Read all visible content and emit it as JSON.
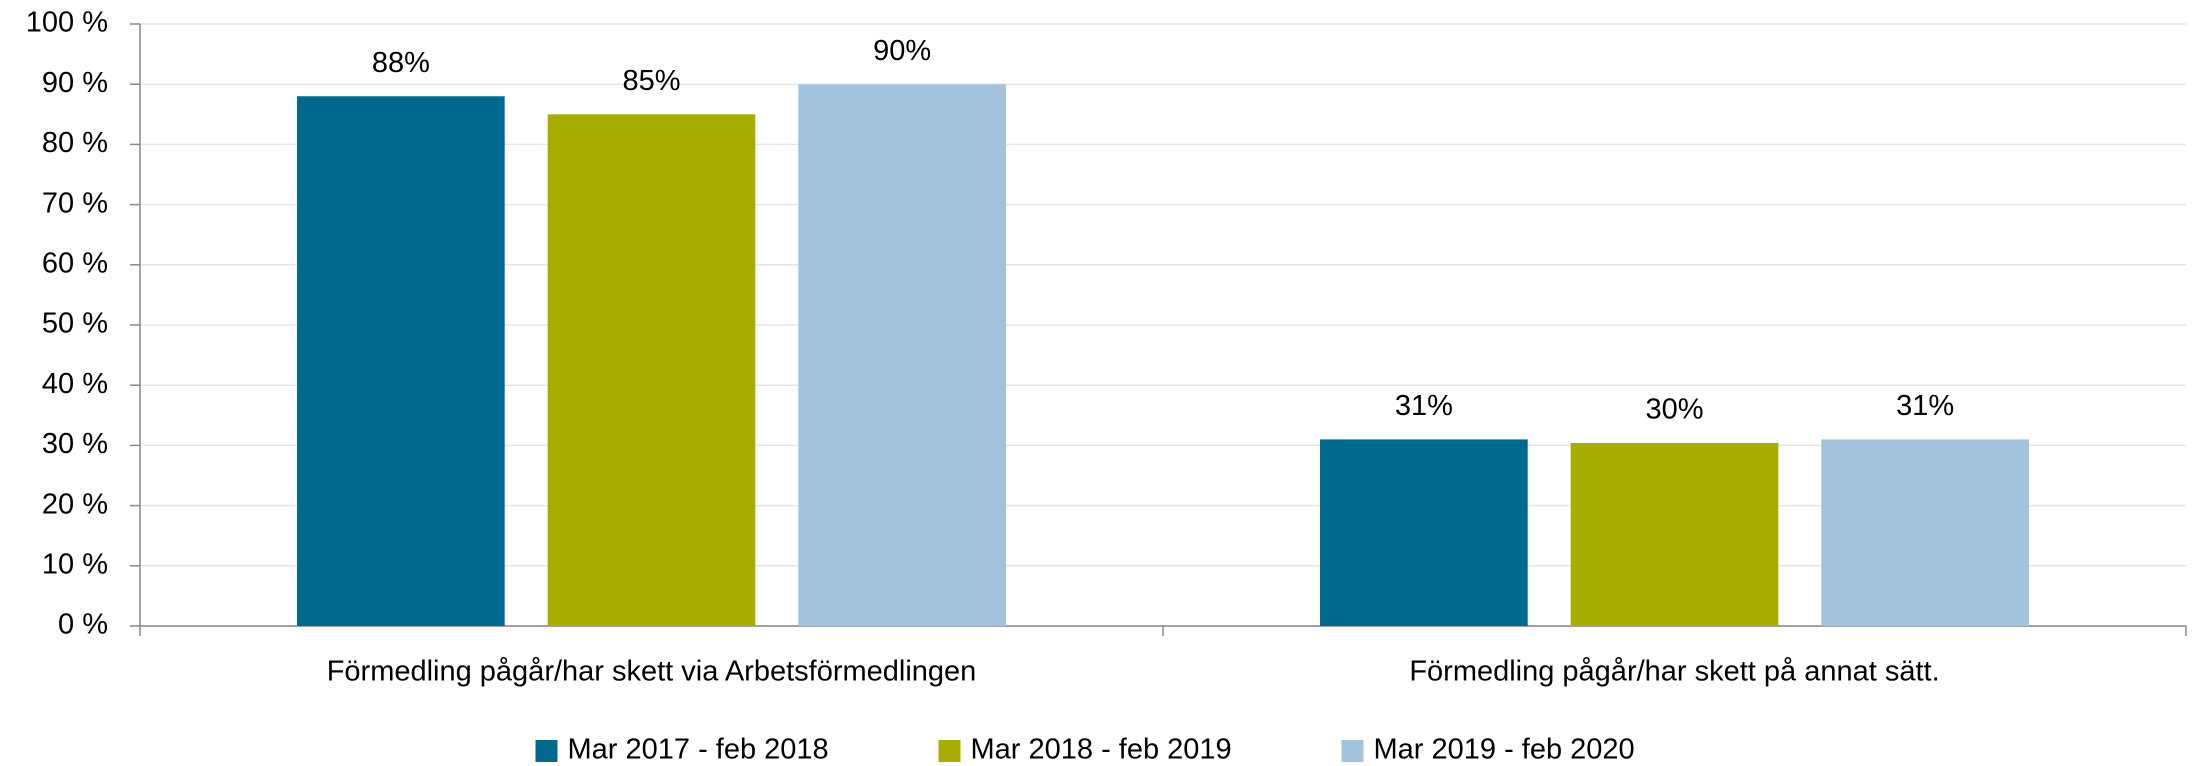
{
  "chart_data": {
    "type": "bar",
    "categories": [
      "Förmedling pågår/har skett via Arbetsförmedlingen",
      "Förmedling pågår/har skett på annat sätt."
    ],
    "series": [
      {
        "name": "Mar 2017 - feb 2018",
        "color": "#006a8e",
        "values": [
          88,
          31
        ],
        "value_labels": [
          "88%",
          "31%"
        ]
      },
      {
        "name": "Mar 2018 - feb 2019",
        "color": "#a8ad00",
        "values": [
          85,
          30.4
        ],
        "value_labels": [
          "85%",
          "30%"
        ]
      },
      {
        "name": "Mar 2019 - feb 2020",
        "color": "#a3c3dc",
        "values": [
          90,
          31
        ],
        "value_labels": [
          "90%",
          "31%"
        ]
      }
    ],
    "ylim": [
      0,
      100
    ],
    "yticks": [
      {
        "value": 0,
        "label": "0 %"
      },
      {
        "value": 10,
        "label": "10 %"
      },
      {
        "value": 20,
        "label": "20 %"
      },
      {
        "value": 30,
        "label": "30 %"
      },
      {
        "value": 40,
        "label": "40 %"
      },
      {
        "value": 50,
        "label": "50 %"
      },
      {
        "value": 60,
        "label": "60 %"
      },
      {
        "value": 70,
        "label": "70 %"
      },
      {
        "value": 80,
        "label": "80 %"
      },
      {
        "value": 90,
        "label": "90 %"
      },
      {
        "value": 100,
        "label": "100 %"
      }
    ],
    "grid": true,
    "legend": "bottom"
  }
}
